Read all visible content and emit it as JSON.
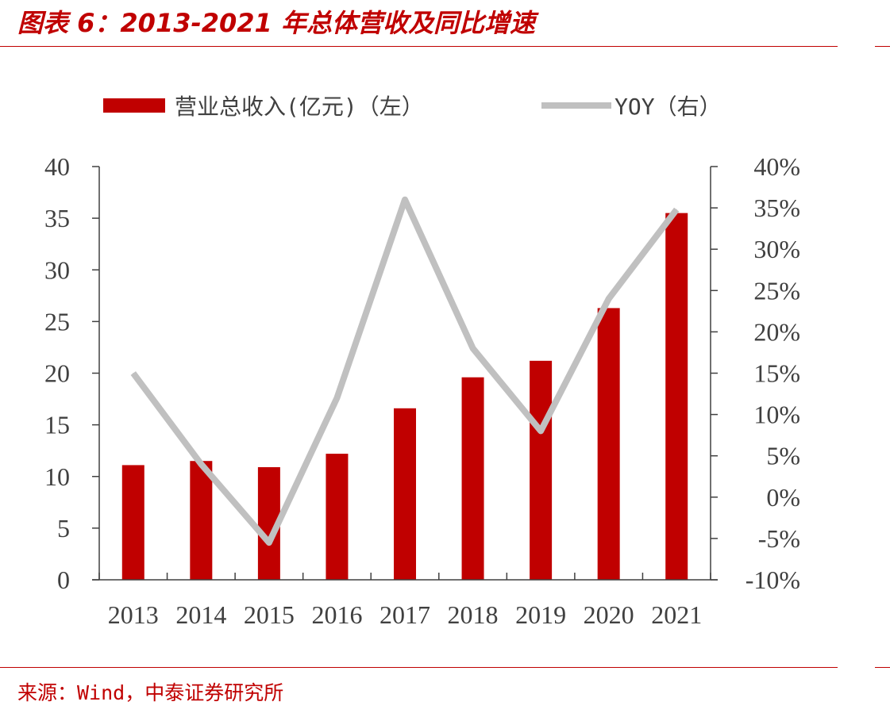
{
  "header": {
    "title": "图表 6：2013-2021 年总体营收及同比增速"
  },
  "footer": {
    "source": "来源：Wind，中泰证券研究所"
  },
  "chart_data": {
    "type": "bar",
    "categories": [
      "2013",
      "2014",
      "2015",
      "2016",
      "2017",
      "2018",
      "2019",
      "2020",
      "2021"
    ],
    "series": [
      {
        "name": "营业总收入(亿元)（左）",
        "type": "bar",
        "axis": "left",
        "color": "#c00000",
        "values": [
          11.1,
          11.5,
          10.9,
          12.2,
          16.6,
          19.6,
          21.2,
          26.3,
          35.5
        ]
      },
      {
        "name": "YOY（右）",
        "type": "line",
        "axis": "right",
        "color": "#c0c0c0",
        "values": [
          15.0,
          4.0,
          -5.5,
          12.0,
          36.0,
          18.0,
          8.0,
          24.0,
          34.8
        ]
      }
    ],
    "y_left": {
      "range": [
        0,
        40
      ],
      "ticks": [
        "0",
        "5",
        "10",
        "15",
        "20",
        "25",
        "30",
        "35",
        "40"
      ]
    },
    "y_right": {
      "range": [
        -10,
        40
      ],
      "ticks": [
        "-10%",
        "-5%",
        "0%",
        "5%",
        "10%",
        "15%",
        "20%",
        "25%",
        "30%",
        "35%",
        "40%"
      ]
    },
    "legend": {
      "placement": "top-center"
    },
    "grid": false
  }
}
